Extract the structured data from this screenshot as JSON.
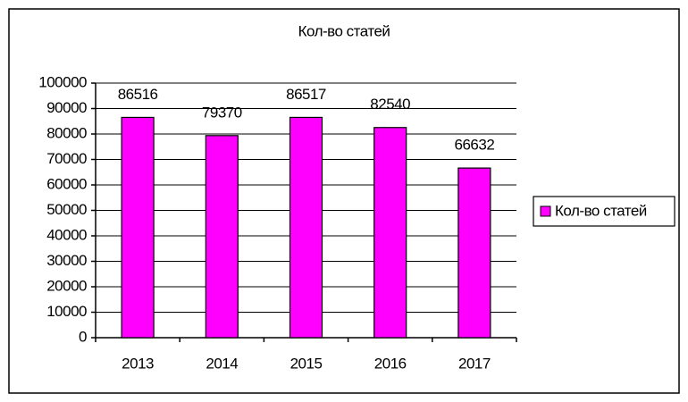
{
  "chart_data": {
    "type": "bar",
    "title": "Кол-во статей",
    "categories": [
      "2013",
      "2014",
      "2015",
      "2016",
      "2017"
    ],
    "series": [
      {
        "name": "Кол-во статей",
        "color": "#ff00ff",
        "values": [
          86516,
          79370,
          86517,
          82540,
          66632
        ]
      }
    ],
    "ylim": [
      0,
      100000
    ],
    "yticks": [
      0,
      10000,
      20000,
      30000,
      40000,
      50000,
      60000,
      70000,
      80000,
      90000,
      100000
    ],
    "grid": true,
    "legend": "right"
  }
}
